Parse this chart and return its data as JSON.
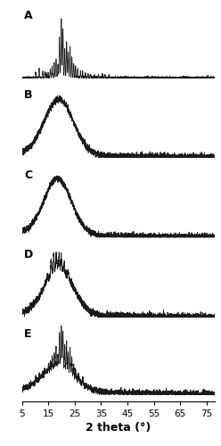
{
  "x_min": 5,
  "x_max": 78,
  "x_ticks": [
    5,
    15,
    25,
    35,
    45,
    55,
    65,
    75
  ],
  "x_label": "2 theta (°)",
  "panel_labels": [
    "A",
    "B",
    "C",
    "D",
    "E"
  ],
  "background_color": "#f5f5f5",
  "line_color": "#1a1a1a",
  "seed": 42
}
